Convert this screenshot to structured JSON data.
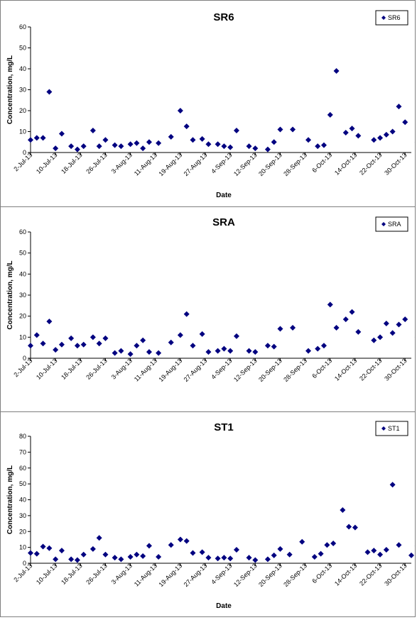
{
  "chart_data": [
    {
      "type": "scatter",
      "title": "SR6",
      "xlabel": "Date",
      "ylabel": "Concentration, mg/L",
      "ylim": [
        0,
        60
      ],
      "yticks": [
        "0",
        "10",
        "20",
        "30",
        "40",
        "50",
        "60"
      ],
      "xlim": [
        "2013-07-02",
        "2013-11-01"
      ],
      "xtick_labels": [
        "2-Jul-13",
        "10-Jul-13",
        "18-Jul-13",
        "26-Jul-13",
        "3-Aug-13",
        "11-Aug-13",
        "19-Aug-13",
        "27-Aug-13",
        "4-Sep-13",
        "12-Sep-13",
        "20-Sep-13",
        "28-Sep-13",
        "6-Oct-13",
        "14-Oct-13",
        "22-Oct-13",
        "30-Oct-13"
      ],
      "grid": false,
      "legend": "top-right",
      "series": [
        {
          "name": "SR6",
          "color": "#000080",
          "marker": "diamond",
          "points": [
            [
              "2013-07-02",
              6
            ],
            [
              "2013-07-04",
              7
            ],
            [
              "2013-07-06",
              7
            ],
            [
              "2013-07-08",
              29
            ],
            [
              "2013-07-10",
              2
            ],
            [
              "2013-07-12",
              9
            ],
            [
              "2013-07-15",
              3
            ],
            [
              "2013-07-17",
              1.5
            ],
            [
              "2013-07-19",
              3
            ],
            [
              "2013-07-22",
              10.5
            ],
            [
              "2013-07-24",
              3
            ],
            [
              "2013-07-26",
              6
            ],
            [
              "2013-07-29",
              3.5
            ],
            [
              "2013-07-31",
              3
            ],
            [
              "2013-08-03",
              4
            ],
            [
              "2013-08-05",
              4.5
            ],
            [
              "2013-08-07",
              2
            ],
            [
              "2013-08-09",
              5
            ],
            [
              "2013-08-12",
              4.5
            ],
            [
              "2013-08-16",
              7.5
            ],
            [
              "2013-08-19",
              20
            ],
            [
              "2013-08-21",
              12.5
            ],
            [
              "2013-08-23",
              6
            ],
            [
              "2013-08-26",
              6.5
            ],
            [
              "2013-08-28",
              4
            ],
            [
              "2013-08-31",
              4
            ],
            [
              "2013-09-02",
              3
            ],
            [
              "2013-09-04",
              2.5
            ],
            [
              "2013-09-06",
              10.5
            ],
            [
              "2013-09-10",
              3
            ],
            [
              "2013-09-12",
              2
            ],
            [
              "2013-09-16",
              1.5
            ],
            [
              "2013-09-18",
              5
            ],
            [
              "2013-09-20",
              11
            ],
            [
              "2013-09-24",
              11
            ],
            [
              "2013-09-29",
              6
            ],
            [
              "2013-10-02",
              3
            ],
            [
              "2013-10-04",
              3.5
            ],
            [
              "2013-10-06",
              18
            ],
            [
              "2013-10-08",
              39
            ],
            [
              "2013-10-11",
              9.5
            ],
            [
              "2013-10-13",
              11.5
            ],
            [
              "2013-10-15",
              8
            ],
            [
              "2013-10-20",
              6
            ],
            [
              "2013-10-22",
              7
            ],
            [
              "2013-10-24",
              8.5
            ],
            [
              "2013-10-26",
              10
            ],
            [
              "2013-10-28",
              22
            ],
            [
              "2013-10-30",
              14.5
            ],
            [
              "2013-11-03",
              5
            ],
            [
              "2013-11-05",
              6
            ]
          ]
        }
      ]
    },
    {
      "type": "scatter",
      "title": "SRA",
      "xlabel": "",
      "ylabel": "Concentration, mg/L",
      "ylim": [
        0,
        60
      ],
      "yticks": [
        "0",
        "10",
        "20",
        "30",
        "40",
        "50",
        "60"
      ],
      "xlim": [
        "2013-07-02",
        "2013-11-01"
      ],
      "xtick_labels": [
        "2-Jul-13",
        "10-Jul-13",
        "18-Jul-13",
        "26-Jul-13",
        "3-Aug-13",
        "11-Aug-13",
        "19-Aug-13",
        "27-Aug-13",
        "4-Sep-13",
        "12-Sep-13",
        "20-Sep-13",
        "28-Sep-13",
        "6-Oct-13",
        "14-Oct-13",
        "22-Oct-13",
        "30-Oct-13"
      ],
      "grid": false,
      "legend": "top-right",
      "series": [
        {
          "name": "SRA",
          "color": "#000080",
          "marker": "diamond",
          "points": [
            [
              "2013-07-02",
              6
            ],
            [
              "2013-07-04",
              11
            ],
            [
              "2013-07-06",
              7
            ],
            [
              "2013-07-08",
              17.5
            ],
            [
              "2013-07-10",
              4
            ],
            [
              "2013-07-12",
              6.5
            ],
            [
              "2013-07-15",
              9.5
            ],
            [
              "2013-07-17",
              6
            ],
            [
              "2013-07-19",
              6.5
            ],
            [
              "2013-07-22",
              10
            ],
            [
              "2013-07-24",
              7
            ],
            [
              "2013-07-26",
              9.5
            ],
            [
              "2013-07-29",
              2.5
            ],
            [
              "2013-07-31",
              3.5
            ],
            [
              "2013-08-03",
              2
            ],
            [
              "2013-08-05",
              6
            ],
            [
              "2013-08-07",
              8.5
            ],
            [
              "2013-08-09",
              3
            ],
            [
              "2013-08-12",
              2.5
            ],
            [
              "2013-08-16",
              7.5
            ],
            [
              "2013-08-19",
              11
            ],
            [
              "2013-08-21",
              21
            ],
            [
              "2013-08-23",
              6
            ],
            [
              "2013-08-26",
              11.5
            ],
            [
              "2013-08-28",
              3
            ],
            [
              "2013-08-31",
              3.5
            ],
            [
              "2013-09-02",
              4.5
            ],
            [
              "2013-09-04",
              3.5
            ],
            [
              "2013-09-06",
              10.5
            ],
            [
              "2013-09-10",
              3.5
            ],
            [
              "2013-09-12",
              3
            ],
            [
              "2013-09-16",
              6
            ],
            [
              "2013-09-18",
              5.5
            ],
            [
              "2013-09-20",
              14
            ],
            [
              "2013-09-24",
              14.5
            ],
            [
              "2013-09-29",
              3.5
            ],
            [
              "2013-10-02",
              4.5
            ],
            [
              "2013-10-04",
              6
            ],
            [
              "2013-10-06",
              25.5
            ],
            [
              "2013-10-08",
              14.5
            ],
            [
              "2013-10-11",
              18.5
            ],
            [
              "2013-10-13",
              22
            ],
            [
              "2013-10-15",
              12.5
            ],
            [
              "2013-10-20",
              8.5
            ],
            [
              "2013-10-22",
              10
            ],
            [
              "2013-10-24",
              16.5
            ],
            [
              "2013-10-26",
              12
            ],
            [
              "2013-10-28",
              16
            ],
            [
              "2013-10-30",
              18.5
            ],
            [
              "2013-11-03",
              10
            ],
            [
              "2013-11-05",
              20
            ]
          ]
        }
      ]
    },
    {
      "type": "scatter",
      "title": "ST1",
      "xlabel": "Date",
      "ylabel": "Concentration, mg/L",
      "ylim": [
        0,
        80
      ],
      "yticks": [
        "0",
        "10",
        "20",
        "30",
        "40",
        "50",
        "60",
        "70",
        "80"
      ],
      "xlim": [
        "2013-07-02",
        "2013-11-01"
      ],
      "xtick_labels": [
        "2-Jul-13",
        "10-Jul-13",
        "18-Jul-13",
        "26-Jul-13",
        "3-Aug-13",
        "11-Aug-13",
        "19-Aug-13",
        "27-Aug-13",
        "4-Sep-13",
        "12-Sep-13",
        "20-Sep-13",
        "28-Sep-13",
        "6-Oct-13",
        "14-Oct-13",
        "22-Oct-13",
        "30-Oct-13"
      ],
      "grid": false,
      "legend": "top-right",
      "series": [
        {
          "name": "ST1",
          "color": "#000080",
          "marker": "diamond",
          "points": [
            [
              "2013-07-02",
              6.5
            ],
            [
              "2013-07-04",
              6
            ],
            [
              "2013-07-06",
              10.5
            ],
            [
              "2013-07-08",
              9.5
            ],
            [
              "2013-07-10",
              2.5
            ],
            [
              "2013-07-12",
              8
            ],
            [
              "2013-07-15",
              2.5
            ],
            [
              "2013-07-17",
              2
            ],
            [
              "2013-07-19",
              5.5
            ],
            [
              "2013-07-22",
              9
            ],
            [
              "2013-07-24",
              16
            ],
            [
              "2013-07-26",
              5.5
            ],
            [
              "2013-07-29",
              3.5
            ],
            [
              "2013-07-31",
              2.5
            ],
            [
              "2013-08-03",
              4
            ],
            [
              "2013-08-05",
              5.5
            ],
            [
              "2013-08-07",
              4.5
            ],
            [
              "2013-08-09",
              11
            ],
            [
              "2013-08-12",
              4
            ],
            [
              "2013-08-16",
              11.5
            ],
            [
              "2013-08-19",
              15
            ],
            [
              "2013-08-21",
              14
            ],
            [
              "2013-08-23",
              6.5
            ],
            [
              "2013-08-26",
              7
            ],
            [
              "2013-08-28",
              3.5
            ],
            [
              "2013-08-31",
              3
            ],
            [
              "2013-09-02",
              3.5
            ],
            [
              "2013-09-04",
              3
            ],
            [
              "2013-09-06",
              8.5
            ],
            [
              "2013-09-10",
              3.5
            ],
            [
              "2013-09-12",
              2
            ],
            [
              "2013-09-16",
              2.5
            ],
            [
              "2013-09-18",
              5
            ],
            [
              "2013-09-20",
              9
            ],
            [
              "2013-09-23",
              5.5
            ],
            [
              "2013-09-27",
              13.5
            ],
            [
              "2013-10-01",
              4
            ],
            [
              "2013-10-03",
              6
            ],
            [
              "2013-10-05",
              11.5
            ],
            [
              "2013-10-07",
              12.5
            ],
            [
              "2013-10-10",
              33.5
            ],
            [
              "2013-10-12",
              23
            ],
            [
              "2013-10-14",
              22.5
            ],
            [
              "2013-10-18",
              7
            ],
            [
              "2013-10-20",
              8
            ],
            [
              "2013-10-22",
              5.5
            ],
            [
              "2013-10-24",
              8.5
            ],
            [
              "2013-10-26",
              49.5
            ],
            [
              "2013-10-28",
              11.5
            ],
            [
              "2013-11-01",
              5
            ],
            [
              "2013-11-03",
              11
            ]
          ]
        }
      ]
    }
  ]
}
